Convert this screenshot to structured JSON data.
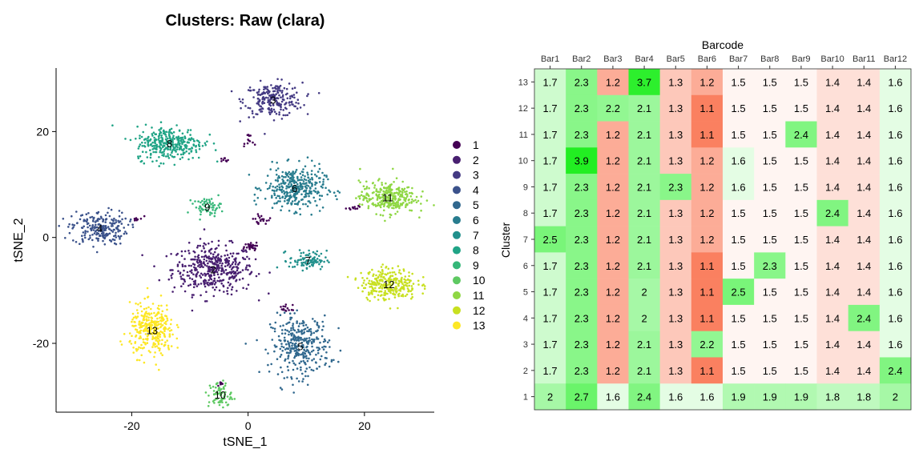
{
  "chart_data": [
    {
      "type": "scatter",
      "title": "Clusters: Raw (clara)",
      "xlabel": "tSNE_1",
      "ylabel": "tSNE_2",
      "xlim": [
        -33,
        32
      ],
      "ylim": [
        -33,
        32
      ],
      "xticks": [
        -20,
        0,
        20
      ],
      "yticks": [
        -20,
        0,
        20
      ],
      "xtick_labels": [
        "-20",
        "0",
        "20"
      ],
      "ytick_labels": [
        "-20",
        "0",
        "20"
      ],
      "legend_position": "right",
      "clusters": [
        {
          "name": "1",
          "color": "#440154",
          "cx": 4,
          "cy": 9,
          "sx": 0,
          "sy": 0,
          "n": 0
        },
        {
          "name": "2",
          "color": "#481F70",
          "cx": -6,
          "cy": -6,
          "sx": 3.5,
          "sy": 2.3,
          "n": 420
        },
        {
          "name": "3",
          "color": "#443A83",
          "cx": 4.3,
          "cy": 26,
          "sx": 2.5,
          "sy": 1.6,
          "n": 230
        },
        {
          "name": "4",
          "color": "#3B528B",
          "cx": -25.5,
          "cy": 1.8,
          "sx": 2.4,
          "sy": 1.6,
          "n": 220
        },
        {
          "name": "5",
          "color": "#31688E",
          "cx": 9,
          "cy": -20.5,
          "sx": 2.5,
          "sy": 2.8,
          "n": 330
        },
        {
          "name": "6",
          "color": "#287C8E",
          "cx": 8,
          "cy": 9.3,
          "sx": 2.6,
          "sy": 2.0,
          "n": 350
        },
        {
          "name": "7",
          "color": "#21908C",
          "cx": 10.3,
          "cy": -4.3,
          "sx": 1.6,
          "sy": 0.9,
          "n": 90
        },
        {
          "name": "8",
          "color": "#20A486",
          "cx": -13.5,
          "cy": 17.8,
          "sx": 2.9,
          "sy": 1.6,
          "n": 320
        },
        {
          "name": "9",
          "color": "#35B779",
          "cx": -7,
          "cy": 5.8,
          "sx": 1.2,
          "sy": 0.8,
          "n": 60
        },
        {
          "name": "10",
          "color": "#5EC962",
          "cx": -4.8,
          "cy": -29.7,
          "sx": 1.0,
          "sy": 1.3,
          "n": 70
        },
        {
          "name": "11",
          "color": "#8FD744",
          "cx": 24,
          "cy": 7.6,
          "sx": 2.4,
          "sy": 1.5,
          "n": 300
        },
        {
          "name": "12",
          "color": "#C8E020",
          "cx": 24.2,
          "cy": -8.8,
          "sx": 2.4,
          "sy": 1.5,
          "n": 280
        },
        {
          "name": "13",
          "color": "#FDE725",
          "cx": -16.5,
          "cy": -17.5,
          "sx": 1.9,
          "sy": 2.4,
          "n": 320
        }
      ]
    },
    {
      "type": "heatmap",
      "xlabel": "Barcode",
      "ylabel": "Cluster",
      "columns": [
        "Bar1",
        "Bar2",
        "Bar3",
        "Bar4",
        "Bar5",
        "Bar6",
        "Bar7",
        "Bar8",
        "Bar9",
        "Bar10",
        "Bar11",
        "Bar12"
      ],
      "rows": [
        "13",
        "12",
        "11",
        "10",
        "9",
        "8",
        "7",
        "6",
        "5",
        "4",
        "3",
        "2",
        "1"
      ],
      "values": [
        [
          "1.7",
          "2.3",
          "1.2",
          "3.7",
          "1.3",
          "1.2",
          "1.5",
          "1.5",
          "1.5",
          "1.4",
          "1.4",
          "1.6"
        ],
        [
          "1.7",
          "2.3",
          "2.2",
          "2.1",
          "1.3",
          "1.1",
          "1.5",
          "1.5",
          "1.5",
          "1.4",
          "1.4",
          "1.6"
        ],
        [
          "1.7",
          "2.3",
          "1.2",
          "2.1",
          "1.3",
          "1.1",
          "1.5",
          "1.5",
          "2.4",
          "1.4",
          "1.4",
          "1.6"
        ],
        [
          "1.7",
          "3.9",
          "1.2",
          "2.1",
          "1.3",
          "1.2",
          "1.6",
          "1.5",
          "1.5",
          "1.4",
          "1.4",
          "1.6"
        ],
        [
          "1.7",
          "2.3",
          "1.2",
          "2.1",
          "2.3",
          "1.2",
          "1.6",
          "1.5",
          "1.5",
          "1.4",
          "1.4",
          "1.6"
        ],
        [
          "1.7",
          "2.3",
          "1.2",
          "2.1",
          "1.3",
          "1.2",
          "1.5",
          "1.5",
          "1.5",
          "2.4",
          "1.4",
          "1.6"
        ],
        [
          "2.5",
          "2.3",
          "1.2",
          "2.1",
          "1.3",
          "1.2",
          "1.5",
          "1.5",
          "1.5",
          "1.4",
          "1.4",
          "1.6"
        ],
        [
          "1.7",
          "2.3",
          "1.2",
          "2.1",
          "1.3",
          "1.1",
          "1.5",
          "2.3",
          "1.5",
          "1.4",
          "1.4",
          "1.6"
        ],
        [
          "1.7",
          "2.3",
          "1.2",
          "2",
          "1.3",
          "1.1",
          "2.5",
          "1.5",
          "1.5",
          "1.4",
          "1.4",
          "1.6"
        ],
        [
          "1.7",
          "2.3",
          "1.2",
          "2",
          "1.3",
          "1.1",
          "1.5",
          "1.5",
          "1.5",
          "1.4",
          "2.4",
          "1.6"
        ],
        [
          "1.7",
          "2.3",
          "1.2",
          "2.1",
          "1.3",
          "2.2",
          "1.5",
          "1.5",
          "1.5",
          "1.4",
          "1.4",
          "1.6"
        ],
        [
          "1.7",
          "2.3",
          "1.2",
          "2.1",
          "1.3",
          "1.1",
          "1.5",
          "1.5",
          "1.5",
          "1.4",
          "1.4",
          "2.4"
        ],
        [
          "2",
          "2.7",
          "1.6",
          "2.4",
          "1.6",
          "1.6",
          "1.9",
          "1.9",
          "1.9",
          "1.8",
          "1.8",
          "2"
        ]
      ],
      "color_low": "#FA8060",
      "color_mid": "#FFFFFF",
      "color_high": "#22EE22",
      "midpoint": 1.55
    }
  ]
}
